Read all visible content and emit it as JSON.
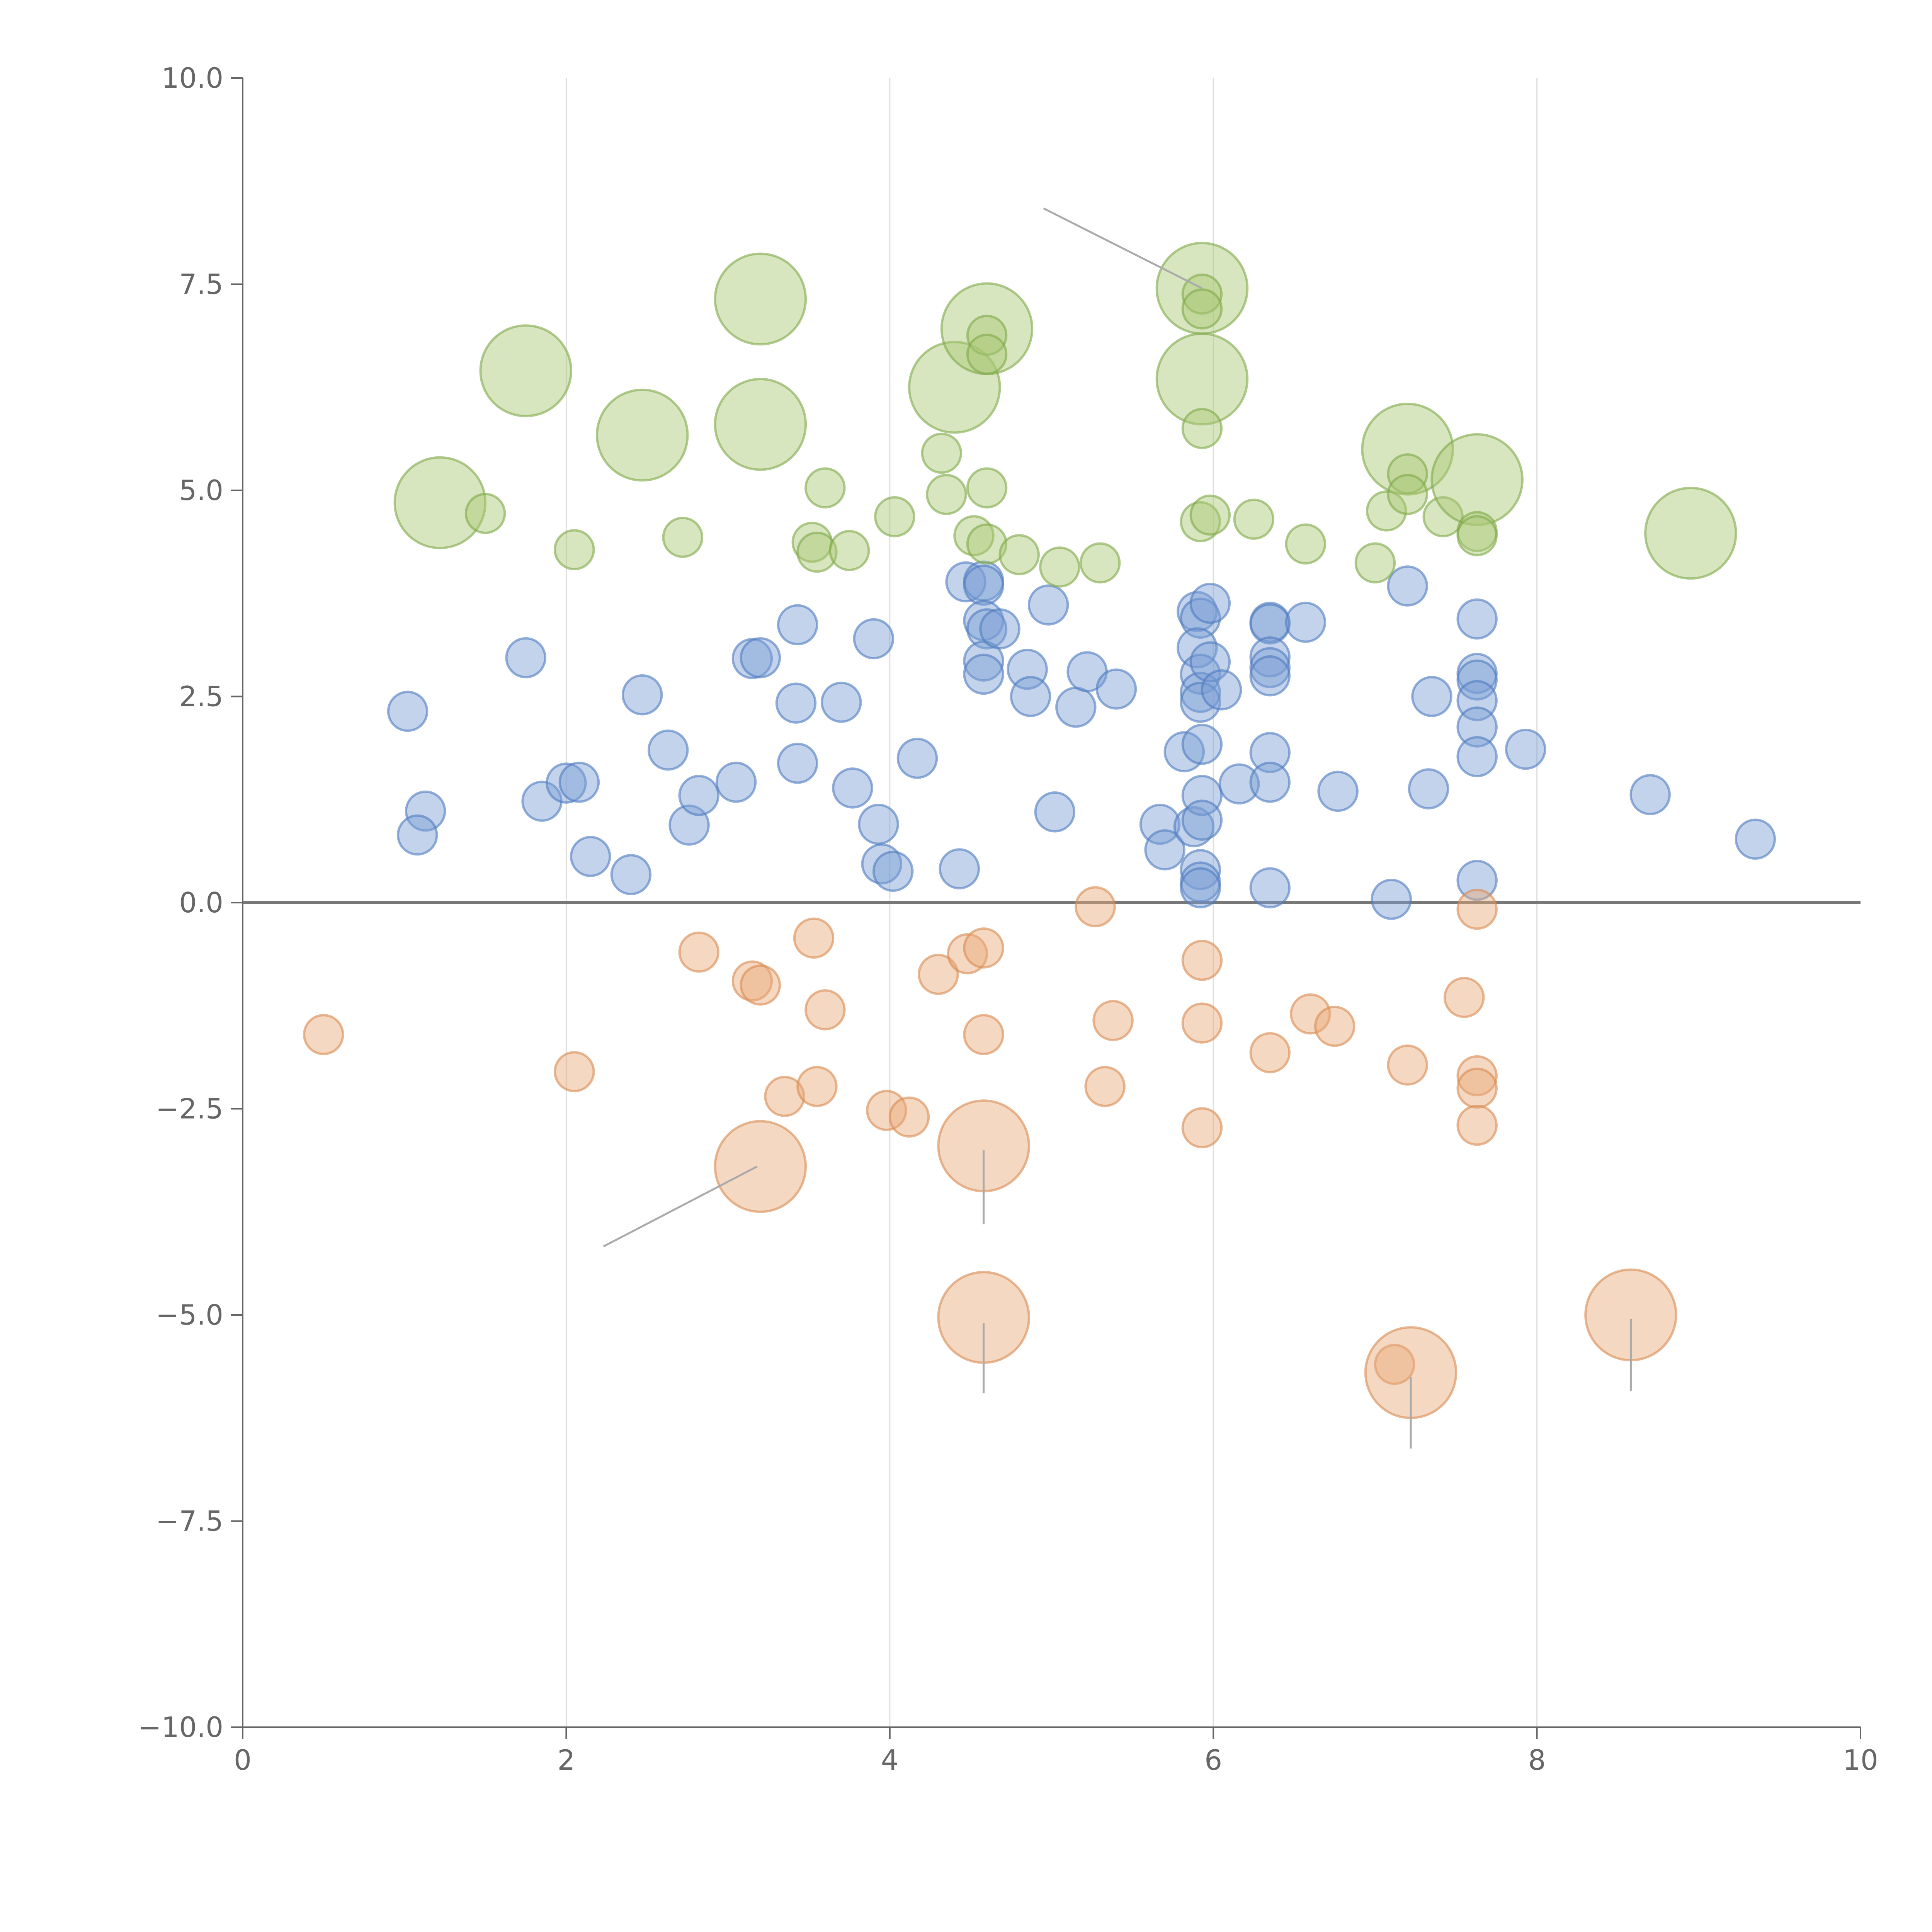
{
  "chart_data": {
    "type": "scatter",
    "title": "",
    "xlabel": "",
    "ylabel": "",
    "xlim": [
      0,
      10
    ],
    "ylim": [
      -10,
      10
    ],
    "x_ticks": [
      0,
      2,
      4,
      6,
      8,
      10
    ],
    "x_tick_labels": [
      "0",
      "2",
      "4",
      "6",
      "8",
      "10"
    ],
    "y_ticks": [
      -10,
      -7.5,
      -5,
      -2.5,
      0,
      2.5,
      5,
      7.5,
      10
    ],
    "y_tick_labels": [
      "−10.0",
      "−7.5",
      "−5.0",
      "−2.5",
      "0.0",
      "2.5",
      "5.0",
      "7.5",
      "10.0"
    ],
    "grid": "vertical",
    "zero_line": true,
    "legend": "none",
    "bubble_opacity": 0.45,
    "series": [
      {
        "color": "#7b9ed4",
        "stroke": "#4f7cc0",
        "points": [
          [
            1.02,
            2.32,
            12
          ],
          [
            1.13,
            1.11,
            12
          ],
          [
            1.08,
            0.82,
            12
          ],
          [
            1.75,
            2.97,
            12
          ],
          [
            1.85,
            1.23,
            12
          ],
          [
            2.0,
            1.45,
            12
          ],
          [
            2.08,
            1.46,
            12
          ],
          [
            2.15,
            0.56,
            12
          ],
          [
            2.4,
            0.34,
            12
          ],
          [
            2.47,
            2.52,
            12
          ],
          [
            2.63,
            1.85,
            12
          ],
          [
            2.76,
            0.94,
            12
          ],
          [
            2.82,
            1.3,
            12
          ],
          [
            3.05,
            1.46,
            12
          ],
          [
            3.15,
            2.96,
            12
          ],
          [
            3.2,
            2.97,
            12
          ],
          [
            3.43,
            3.37,
            12
          ],
          [
            3.42,
            2.42,
            12
          ],
          [
            3.43,
            1.69,
            12
          ],
          [
            3.7,
            2.43,
            12
          ],
          [
            3.77,
            1.39,
            12
          ],
          [
            3.9,
            3.2,
            12
          ],
          [
            3.93,
            0.95,
            12
          ],
          [
            3.95,
            0.47,
            12
          ],
          [
            4.02,
            0.38,
            12
          ],
          [
            4.17,
            1.75,
            12
          ],
          [
            4.43,
            0.41,
            12
          ],
          [
            4.47,
            3.89,
            12
          ],
          [
            4.58,
            3.9,
            12
          ],
          [
            4.58,
            3.85,
            12
          ],
          [
            4.58,
            3.42,
            12
          ],
          [
            4.6,
            3.32,
            12
          ],
          [
            4.58,
            2.93,
            12
          ],
          [
            4.58,
            2.77,
            12
          ],
          [
            4.68,
            3.32,
            12
          ],
          [
            4.85,
            2.83,
            12
          ],
          [
            4.87,
            2.5,
            12
          ],
          [
            4.98,
            3.61,
            12
          ],
          [
            5.02,
            1.1,
            12
          ],
          [
            5.15,
            2.37,
            12
          ],
          [
            5.22,
            2.8,
            12
          ],
          [
            5.4,
            2.59,
            12
          ],
          [
            5.67,
            0.95,
            12
          ],
          [
            5.7,
            0.64,
            12
          ],
          [
            5.82,
            1.83,
            12
          ],
          [
            5.88,
            0.92,
            12
          ],
          [
            5.9,
            3.53,
            12
          ],
          [
            5.92,
            3.45,
            12
          ],
          [
            5.9,
            3.09,
            12
          ],
          [
            5.92,
            2.77,
            12
          ],
          [
            5.92,
            2.55,
            12
          ],
          [
            5.92,
            2.43,
            12
          ],
          [
            5.93,
            1.92,
            12
          ],
          [
            5.93,
            1.3,
            12
          ],
          [
            5.93,
            1.0,
            12
          ],
          [
            5.92,
            0.4,
            12
          ],
          [
            5.92,
            0.25,
            12
          ],
          [
            5.92,
            0.18,
            12
          ],
          [
            5.98,
            3.63,
            12
          ],
          [
            5.98,
            2.92,
            12
          ],
          [
            6.05,
            2.58,
            12
          ],
          [
            6.16,
            1.44,
            12
          ],
          [
            6.35,
            3.4,
            12
          ],
          [
            6.35,
            3.38,
            12
          ],
          [
            6.35,
            2.98,
            12
          ],
          [
            6.35,
            2.85,
            12
          ],
          [
            6.35,
            2.75,
            12
          ],
          [
            6.35,
            1.82,
            12
          ],
          [
            6.35,
            1.46,
            12
          ],
          [
            6.35,
            0.18,
            12
          ],
          [
            6.57,
            3.4,
            12
          ],
          [
            6.77,
            1.35,
            12
          ],
          [
            7.1,
            0.04,
            12
          ],
          [
            7.2,
            3.84,
            12
          ],
          [
            7.35,
            2.5,
            12
          ],
          [
            7.33,
            1.38,
            12
          ],
          [
            7.63,
            3.44,
            12
          ],
          [
            7.63,
            2.78,
            12
          ],
          [
            7.63,
            2.7,
            12
          ],
          [
            7.63,
            2.45,
            12
          ],
          [
            7.63,
            2.13,
            12
          ],
          [
            7.63,
            1.77,
            12
          ],
          [
            7.63,
            0.27,
            12
          ],
          [
            7.93,
            1.86,
            12
          ],
          [
            8.7,
            1.31,
            12
          ],
          [
            9.35,
            0.77,
            12
          ]
        ]
      },
      {
        "color": "#a8c874",
        "stroke": "#7fa848",
        "points": [
          [
            1.22,
            4.85,
            28
          ],
          [
            1.5,
            4.72,
            12
          ],
          [
            1.75,
            6.45,
            28
          ],
          [
            2.05,
            4.28,
            12
          ],
          [
            2.47,
            5.67,
            28
          ],
          [
            2.72,
            4.43,
            12
          ],
          [
            3.2,
            7.32,
            28
          ],
          [
            3.2,
            5.8,
            28
          ],
          [
            3.52,
            4.37,
            12
          ],
          [
            3.55,
            4.25,
            12
          ],
          [
            3.6,
            5.03,
            12
          ],
          [
            3.75,
            4.27,
            12
          ],
          [
            4.03,
            4.68,
            12
          ],
          [
            4.32,
            5.45,
            12
          ],
          [
            4.35,
            4.95,
            12
          ],
          [
            4.4,
            6.25,
            28
          ],
          [
            4.52,
            4.45,
            12
          ],
          [
            4.6,
            4.35,
            12
          ],
          [
            4.6,
            6.96,
            28
          ],
          [
            4.6,
            6.88,
            12
          ],
          [
            4.6,
            6.65,
            12
          ],
          [
            4.6,
            5.03,
            12
          ],
          [
            4.8,
            4.22,
            12
          ],
          [
            5.05,
            4.07,
            12
          ],
          [
            5.3,
            4.12,
            12
          ],
          [
            5.93,
            7.45,
            28
          ],
          [
            5.93,
            7.38,
            12
          ],
          [
            5.93,
            7.2,
            12
          ],
          [
            5.93,
            6.35,
            28
          ],
          [
            5.93,
            5.75,
            12
          ],
          [
            5.92,
            4.62,
            12
          ],
          [
            5.98,
            4.7,
            12
          ],
          [
            6.25,
            4.65,
            12
          ],
          [
            6.57,
            4.35,
            12
          ],
          [
            7.0,
            4.12,
            12
          ],
          [
            7.07,
            4.75,
            12
          ],
          [
            7.2,
            5.5,
            28
          ],
          [
            7.2,
            5.2,
            12
          ],
          [
            7.2,
            4.95,
            12
          ],
          [
            7.42,
            4.68,
            12
          ],
          [
            7.63,
            5.13,
            28
          ],
          [
            7.63,
            4.5,
            12
          ],
          [
            7.63,
            4.45,
            12
          ],
          [
            8.95,
            4.48,
            28
          ]
        ]
      },
      {
        "color": "#e8a878",
        "stroke": "#d98a50",
        "points": [
          [
            0.5,
            -1.6,
            12
          ],
          [
            2.05,
            -2.05,
            12
          ],
          [
            2.82,
            -0.6,
            12
          ],
          [
            3.15,
            -0.95,
            12
          ],
          [
            3.2,
            -1.0,
            12
          ],
          [
            3.2,
            -3.2,
            28
          ],
          [
            3.35,
            -2.35,
            12
          ],
          [
            3.53,
            -0.43,
            12
          ],
          [
            3.55,
            -2.23,
            12
          ],
          [
            3.6,
            -1.3,
            12
          ],
          [
            3.98,
            -2.52,
            12
          ],
          [
            4.12,
            -2.6,
            12
          ],
          [
            4.3,
            -0.87,
            12
          ],
          [
            4.48,
            -0.62,
            12
          ],
          [
            4.58,
            -0.55,
            12
          ],
          [
            4.58,
            -1.6,
            12
          ],
          [
            4.58,
            -2.95,
            28
          ],
          [
            4.58,
            -5.03,
            28
          ],
          [
            5.27,
            -0.05,
            12
          ],
          [
            5.33,
            -2.23,
            12
          ],
          [
            5.38,
            -1.43,
            12
          ],
          [
            5.93,
            -0.7,
            12
          ],
          [
            5.93,
            -1.46,
            12
          ],
          [
            5.93,
            -2.73,
            12
          ],
          [
            6.35,
            -1.82,
            12
          ],
          [
            6.6,
            -1.35,
            12
          ],
          [
            6.75,
            -1.5,
            12
          ],
          [
            7.12,
            -5.6,
            12
          ],
          [
            7.22,
            -5.7,
            28
          ],
          [
            7.2,
            -1.97,
            12
          ],
          [
            7.55,
            -1.15,
            12
          ],
          [
            7.63,
            -0.08,
            12
          ],
          [
            7.63,
            -2.1,
            12
          ],
          [
            7.63,
            -2.25,
            12
          ],
          [
            7.63,
            -2.7,
            12
          ],
          [
            8.58,
            -5.0,
            28
          ]
        ]
      }
    ],
    "leader_lines": [
      [
        [
          4.95,
          8.42
        ],
        [
          5.93,
          7.45
        ]
      ],
      [
        [
          3.18,
          -3.2
        ],
        [
          2.23,
          -4.17
        ]
      ],
      [
        [
          4.58,
          -3.0
        ],
        [
          4.58,
          -3.9
        ]
      ],
      [
        [
          4.58,
          -5.1
        ],
        [
          4.58,
          -5.95
        ]
      ],
      [
        [
          7.22,
          -5.75
        ],
        [
          7.22,
          -6.62
        ]
      ],
      [
        [
          8.58,
          -5.05
        ],
        [
          8.58,
          -5.92
        ]
      ]
    ]
  }
}
